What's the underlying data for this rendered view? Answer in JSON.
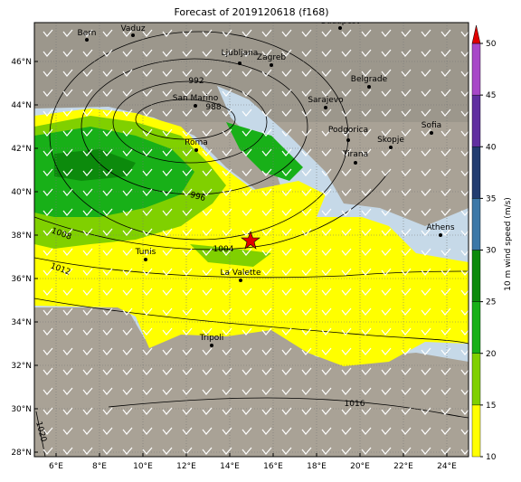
{
  "map": {
    "title": "Forecast of 2019120618 (f168)",
    "lon_ticks": [
      {
        "value": 6,
        "label": "6°E"
      },
      {
        "value": 8,
        "label": "8°E"
      },
      {
        "value": 10,
        "label": "10°E"
      },
      {
        "value": 12,
        "label": "12°E"
      },
      {
        "value": 14,
        "label": "14°E"
      },
      {
        "value": 16,
        "label": "16°E"
      },
      {
        "value": 18,
        "label": "18°E"
      },
      {
        "value": 20,
        "label": "20°E"
      },
      {
        "value": 22,
        "label": "22°E"
      },
      {
        "value": 24,
        "label": "24°E"
      }
    ],
    "lat_ticks": [
      {
        "value": 28,
        "label": "28°N"
      },
      {
        "value": 30,
        "label": "30°N"
      },
      {
        "value": 32,
        "label": "32°N"
      },
      {
        "value": 34,
        "label": "34°N"
      },
      {
        "value": 36,
        "label": "36°N"
      },
      {
        "value": 38,
        "label": "38°N"
      },
      {
        "value": 40,
        "label": "40°N"
      },
      {
        "value": 42,
        "label": "42°N"
      },
      {
        "value": 44,
        "label": "44°N"
      },
      {
        "value": 46,
        "label": "46°N"
      }
    ],
    "cities": [
      "Bern",
      "Vaduz",
      "Budapest",
      "Ljubljana",
      "Zagreb",
      "Belgrade",
      "Sarajevo",
      "San Marino",
      "Roma",
      "Podgorica",
      "Sofia",
      "Skopje",
      "Tirana",
      "Athens",
      "Tunis",
      "La Valette",
      "Tripoli"
    ],
    "isobar_labels": [
      992,
      988,
      996,
      1004,
      1008,
      1012,
      1016,
      1020
    ],
    "colorbar": {
      "label": "10 m wind speed (m/s)",
      "lim": [
        10,
        50
      ],
      "ticks": [
        10,
        15,
        20,
        25,
        30,
        35,
        40,
        45,
        50
      ],
      "colors": [
        "#ffff00",
        "#80d000",
        "#18b018",
        "#0c8a0c",
        "#3c78a8",
        "#223c70",
        "#6030a0",
        "#a848c8"
      ],
      "extend_color": "#e00000"
    }
  }
}
